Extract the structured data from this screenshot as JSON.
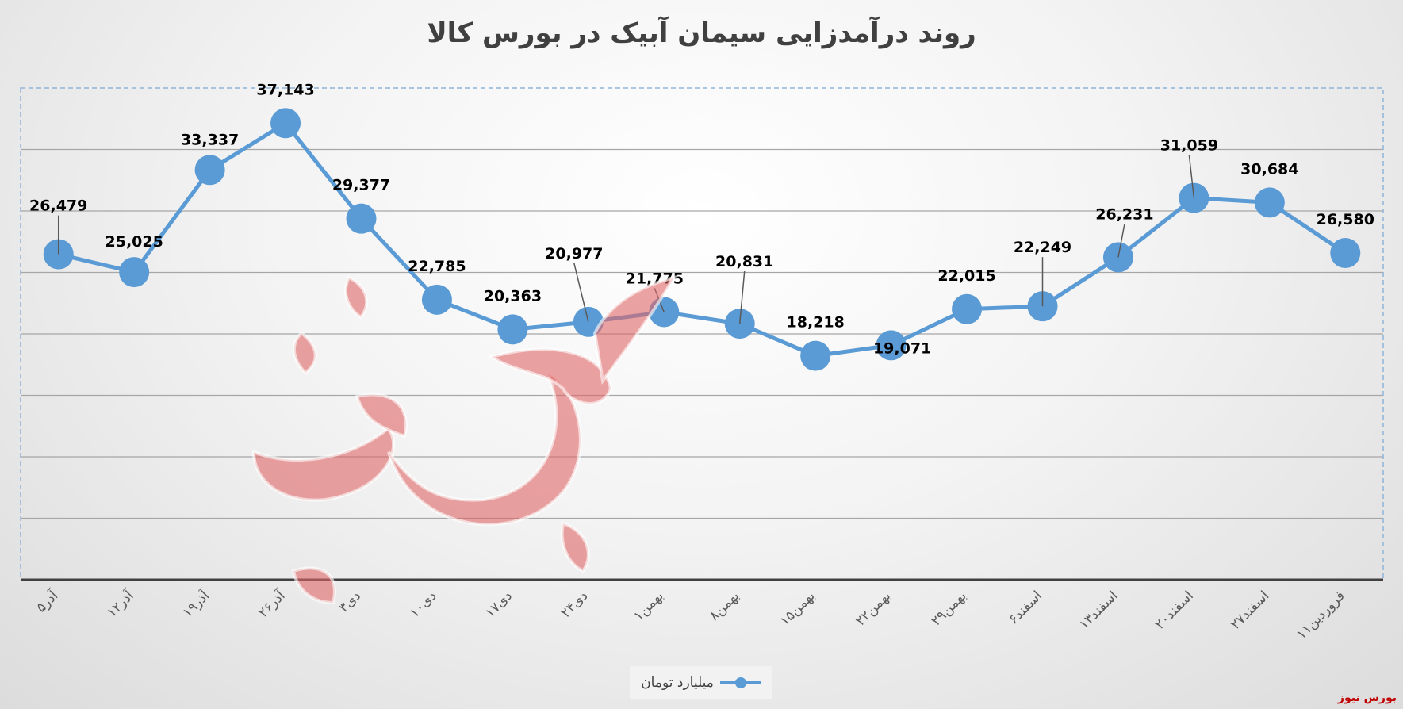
{
  "chart_data": {
    "type": "line",
    "title": "روند درآمدزایی سیمان آبیک در بورس کالا",
    "categories": [
      "۵آذر",
      "۱۲آذر",
      "۱۹آذر",
      "۲۶آذر",
      "۳دی",
      "۱۰دی",
      "۱۷دی",
      "۲۴دی",
      "۱بهمن",
      "۸بهمن",
      "۱۵بهمن",
      "۲۲بهمن",
      "۲۹بهمن",
      "۶اسفند",
      "۱۳اسفند",
      "۲۰اسفند",
      "۲۷اسفند",
      "۱۱فروردین"
    ],
    "series": [
      {
        "name": "میلیارد تومان",
        "values": [
          26479,
          25025,
          33337,
          37143,
          29377,
          22785,
          20363,
          20977,
          21775,
          20831,
          18218,
          19071,
          22015,
          22249,
          26231,
          31059,
          30684,
          26580
        ],
        "labels": [
          "26,479",
          "25,025",
          "33,337",
          "37,143",
          "29,377",
          "22,785",
          "20,363",
          "20,977",
          "21,775",
          "20,831",
          "18,218",
          "19,071",
          "22,015",
          "22,249",
          "26,231",
          "31,059",
          "30,684",
          "26,580"
        ]
      }
    ],
    "ylim": [
      0,
      40000
    ],
    "grid": true,
    "legend": "bottom",
    "colors": {
      "series": "#5b9bd5",
      "grid": "#a6a6a6",
      "watermark": "#e06666"
    }
  },
  "legend": {
    "label": "میلیارد تومان"
  },
  "brand": {
    "corner_text": "بورس نیوز"
  },
  "watermark": {
    "icon": "bourse-news-logo-watermark",
    "text": "بورس نیوز"
  }
}
